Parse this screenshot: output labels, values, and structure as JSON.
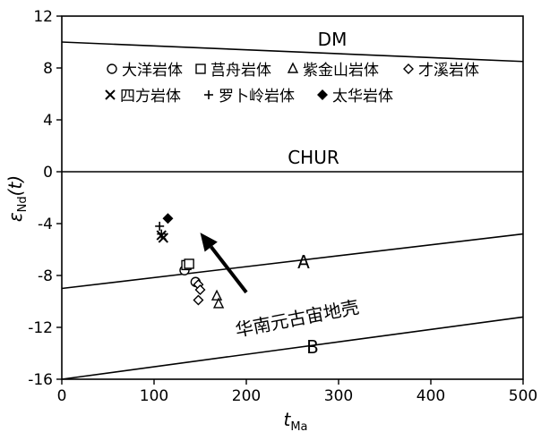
{
  "chart_data": {
    "type": "scatter",
    "xlabel": "t",
    "xlabel_sub": "Ma",
    "ylabel": "ε",
    "ylabel_sub": "Nd",
    "ylabel_suffix": "(t)",
    "xlim": [
      0,
      500
    ],
    "ylim": [
      -16,
      12
    ],
    "xticks": [
      0,
      100,
      200,
      300,
      400,
      500
    ],
    "yticks": [
      12,
      8,
      4,
      0,
      -4,
      -8,
      -12,
      -16
    ],
    "grid": false,
    "legend_position": "top-left",
    "reference_lines": [
      {
        "label": "DM",
        "x": [
          0,
          500
        ],
        "y": [
          10,
          8.5
        ]
      },
      {
        "label": "CHUR",
        "x": [
          0,
          500
        ],
        "y": [
          0,
          0
        ]
      },
      {
        "label": "A",
        "x": [
          0,
          500
        ],
        "y": [
          -9,
          -4.8
        ]
      },
      {
        "label": "B",
        "x": [
          0,
          500
        ],
        "y": [
          -16,
          -11.2
        ]
      }
    ],
    "region_label": "华南元古宙地壳",
    "arrow": {
      "from": [
        200,
        -9.3
      ],
      "to": [
        150,
        -4.7
      ]
    },
    "series": [
      {
        "name": "大洋岩体",
        "marker": "circle",
        "points": [
          [
            133,
            -7.6
          ],
          [
            137,
            -7.2
          ],
          [
            145,
            -8.5
          ]
        ]
      },
      {
        "name": "莒舟岩体",
        "marker": "square",
        "points": [
          [
            135,
            -7.2
          ],
          [
            138,
            -7.1
          ]
        ]
      },
      {
        "name": "紫金山岩体",
        "marker": "triangle",
        "points": [
          [
            168,
            -9.6
          ],
          [
            170,
            -10.2
          ]
        ]
      },
      {
        "name": "才溪岩体",
        "marker": "diamond",
        "points": [
          [
            148,
            -8.7
          ],
          [
            150,
            -9.1
          ],
          [
            148,
            -9.9
          ]
        ]
      },
      {
        "name": "四方岩体",
        "marker": "x",
        "points": [
          [
            108,
            -4.9
          ],
          [
            110,
            -5.1
          ]
        ]
      },
      {
        "name": "罗卜岭岩体",
        "marker": "plus",
        "points": [
          [
            106,
            -4.2
          ],
          [
            108,
            -4.8
          ]
        ]
      },
      {
        "name": "太华岩体",
        "marker": "filled-diamond",
        "points": [
          [
            115,
            -3.6
          ]
        ]
      }
    ]
  }
}
